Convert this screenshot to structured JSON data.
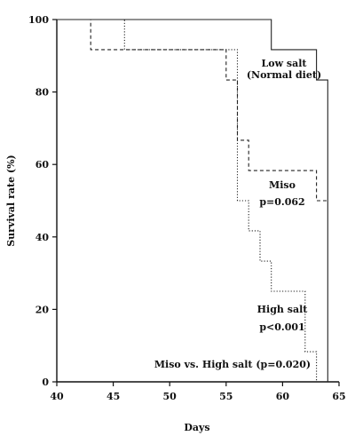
{
  "chart_data": {
    "type": "line",
    "step": true,
    "xlabel": "Days",
    "ylabel": "Survival rate (%)",
    "xlim": [
      40,
      65
    ],
    "ylim": [
      0,
      100
    ],
    "xticks": [
      40,
      45,
      50,
      55,
      60,
      65
    ],
    "yticks": [
      0,
      20,
      40,
      60,
      80,
      100
    ],
    "grid": false,
    "series": [
      {
        "name": "Low salt (Normal diet)",
        "line_style": "solid",
        "points": [
          [
            40,
            100
          ],
          [
            59,
            100
          ],
          [
            59,
            91.7
          ],
          [
            63,
            91.7
          ],
          [
            63,
            83.3
          ],
          [
            64,
            83.3
          ],
          [
            64,
            0
          ]
        ]
      },
      {
        "name": "Miso",
        "line_style": "dashed",
        "points": [
          [
            40,
            100
          ],
          [
            43,
            100
          ],
          [
            43,
            91.7
          ],
          [
            55,
            91.7
          ],
          [
            55,
            83.3
          ],
          [
            56,
            83.3
          ],
          [
            56,
            66.7
          ],
          [
            57,
            66.7
          ],
          [
            57,
            58.3
          ],
          [
            63,
            58.3
          ],
          [
            63,
            50
          ],
          [
            64,
            50
          ]
        ]
      },
      {
        "name": "High salt",
        "line_style": "dotted",
        "points": [
          [
            40,
            100
          ],
          [
            46,
            100
          ],
          [
            46,
            91.7
          ],
          [
            56,
            91.7
          ],
          [
            56,
            50
          ],
          [
            57,
            50
          ],
          [
            57,
            41.7
          ],
          [
            58,
            41.7
          ],
          [
            58,
            33.3
          ],
          [
            59,
            33.3
          ],
          [
            59,
            25
          ],
          [
            62,
            25
          ],
          [
            62,
            8.3
          ],
          [
            63,
            8.3
          ],
          [
            63,
            0
          ]
        ]
      }
    ],
    "annotations": [
      {
        "lines": [
          "Low salt",
          "(Normal diet)"
        ]
      },
      {
        "lines": [
          "Miso",
          "p=0.062"
        ]
      },
      {
        "lines": [
          "High salt",
          "p<0.001"
        ]
      },
      {
        "lines": [
          "Miso vs. High salt (p=0.020)"
        ]
      }
    ]
  }
}
